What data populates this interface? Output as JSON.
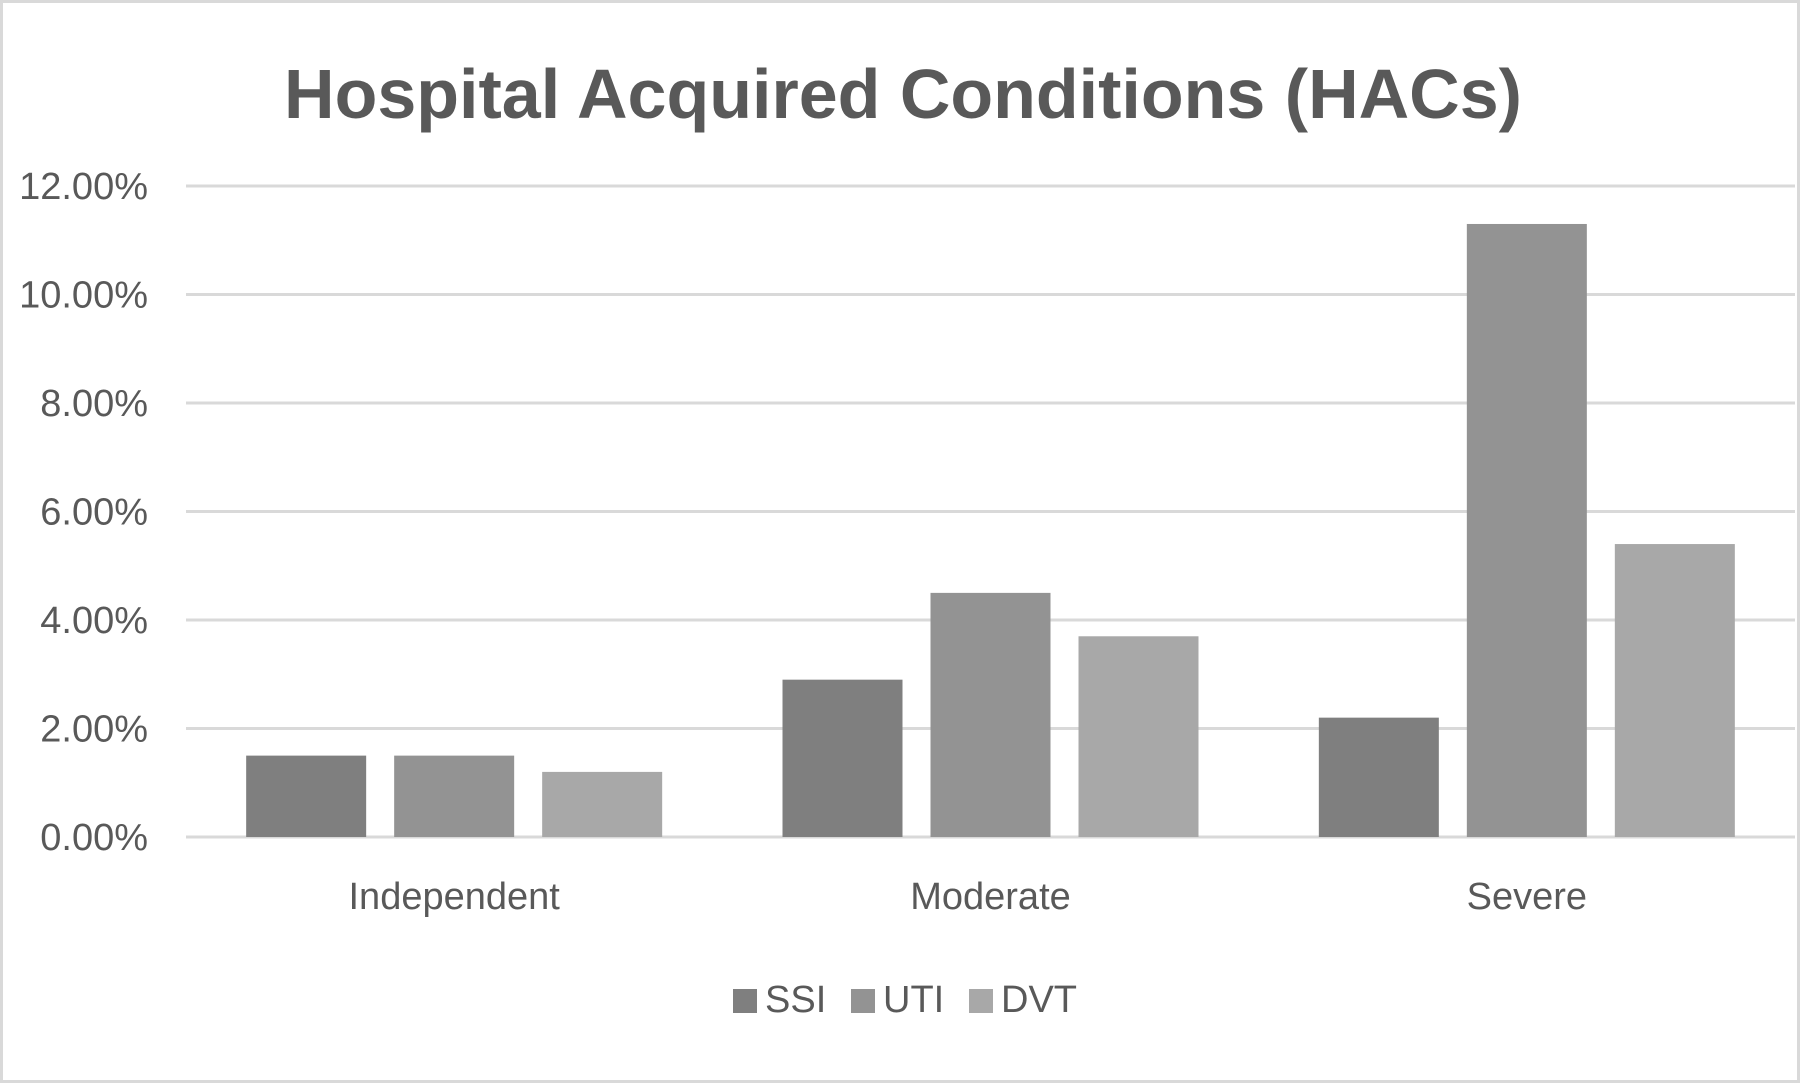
{
  "chart_data": {
    "type": "bar",
    "title": "Hospital Acquired Conditions (HACs)",
    "categories": [
      "Independent",
      "Moderate",
      "Severe"
    ],
    "series": [
      {
        "name": "SSI",
        "values": [
          1.5,
          2.9,
          2.2
        ],
        "color": "#7f7f7f"
      },
      {
        "name": "UTI",
        "values": [
          1.5,
          4.5,
          11.3
        ],
        "color": "#939393"
      },
      {
        "name": "DVT",
        "values": [
          1.2,
          3.7,
          5.4
        ],
        "color": "#a8a8a8"
      }
    ],
    "y_ticks": [
      "0.00%",
      "2.00%",
      "4.00%",
      "6.00%",
      "8.00%",
      "10.00%",
      "12.00%"
    ],
    "ylim": [
      0,
      12
    ],
    "y_unit": "%",
    "grid": true,
    "legend_position": "bottom",
    "colors": {
      "gridline": "#d9d9d9",
      "text": "#595959",
      "border": "#d9d9d9"
    }
  }
}
